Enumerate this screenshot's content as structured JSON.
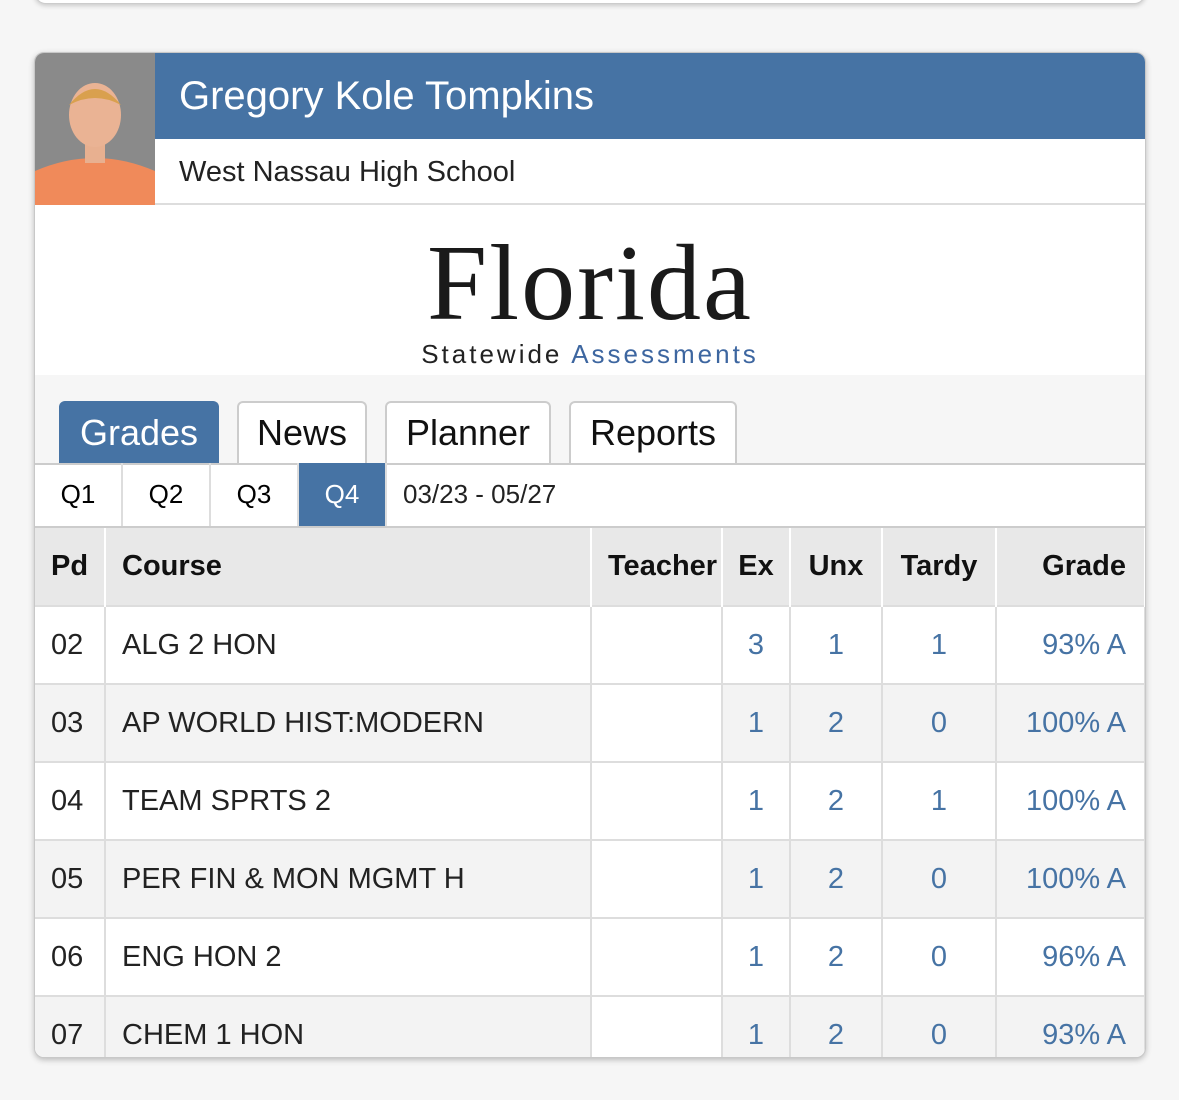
{
  "header": {
    "name": "Gregory Kole Tompkins",
    "school": "West Nassau High School"
  },
  "logo": {
    "title": "Florida",
    "sub1": "Statewide",
    "sub2": "Assessments"
  },
  "tabs": [
    "Grades",
    "News",
    "Planner",
    "Reports"
  ],
  "quarters": [
    "Q1",
    "Q2",
    "Q3",
    "Q4"
  ],
  "date_range": "03/23 - 05/27",
  "table": {
    "columns": [
      "Pd",
      "Course",
      "Teacher",
      "Ex",
      "Unx",
      "Tardy",
      "Grade"
    ],
    "rows": [
      [
        "02",
        "ALG 2 HON",
        "",
        "3",
        "1",
        "1",
        "93% A"
      ],
      [
        "03",
        "AP WORLD HIST:MODERN",
        "",
        "1",
        "2",
        "0",
        "100% A"
      ],
      [
        "04",
        "TEAM SPRTS 2",
        "",
        "1",
        "2",
        "1",
        "100% A"
      ],
      [
        "05",
        "PER FIN & MON MGMT H",
        "",
        "1",
        "2",
        "0",
        "100% A"
      ],
      [
        "06",
        "ENG HON 2",
        "",
        "1",
        "2",
        "0",
        "96% A"
      ],
      [
        "07",
        "CHEM 1 HON",
        "",
        "1",
        "2",
        "0",
        "93% A"
      ]
    ]
  }
}
